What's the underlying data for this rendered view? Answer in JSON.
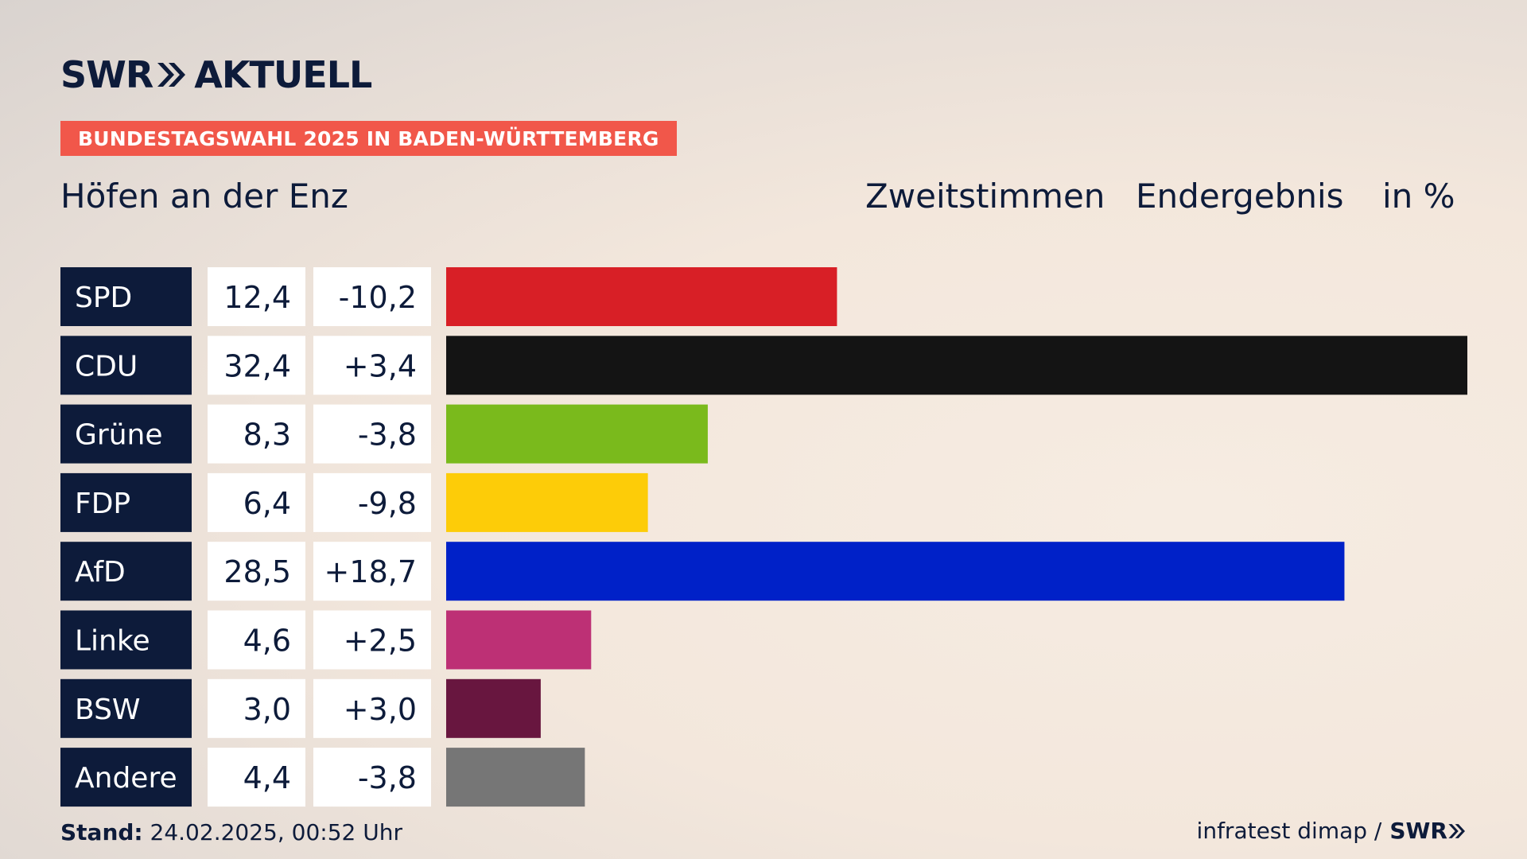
{
  "header": {
    "brand": "SWR",
    "brand_suffix": "AKTUELL",
    "banner": "BUNDESTAGSWAHL 2025 IN BADEN-WÜRTTEMBERG",
    "location": "Höfen an der Enz",
    "vote_type": "Zweitstimmen",
    "result_type": "Endergebnis",
    "unit": "in %"
  },
  "footer": {
    "stand_label": "Stand:",
    "stand_value": "24.02.2025, 00:52 Uhr",
    "source": "infratest dimap /",
    "source_brand": "SWR"
  },
  "chart_data": {
    "type": "bar",
    "orientation": "horizontal",
    "categories": [
      "SPD",
      "CDU",
      "Grüne",
      "FDP",
      "AfD",
      "Linke",
      "BSW",
      "Andere"
    ],
    "values": [
      12.4,
      32.4,
      8.3,
      6.4,
      28.5,
      4.6,
      3.0,
      4.4
    ],
    "value_labels": [
      "12,4",
      "32,4",
      "8,3",
      "6,4",
      "28,5",
      "4,6",
      "3,0",
      "4,4"
    ],
    "change_labels": [
      "-10,2",
      "+3,4",
      "-3,8",
      "-9,8",
      "+18,7",
      "+2,5",
      "+3,0",
      "-3,8"
    ],
    "changes": [
      -10.2,
      3.4,
      -3.8,
      -9.8,
      18.7,
      2.5,
      3.0,
      -3.8
    ],
    "colors": [
      "#d81f26",
      "#141414",
      "#7aba1c",
      "#fdcc08",
      "#0021c8",
      "#bd3075",
      "#68163f",
      "#767676"
    ],
    "xlim": [
      0,
      32.4
    ],
    "grid": false,
    "legend": "none"
  }
}
